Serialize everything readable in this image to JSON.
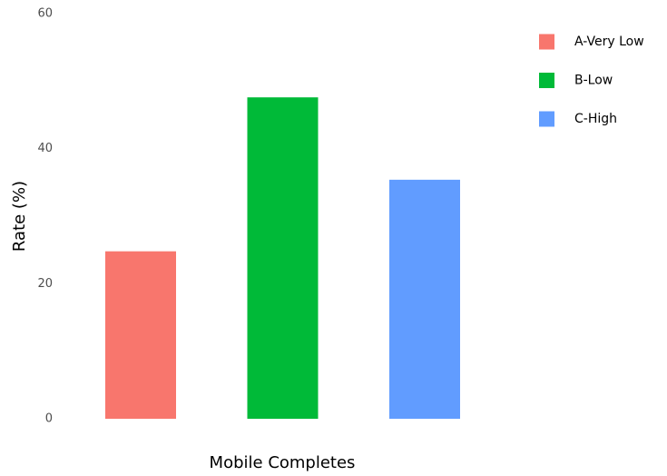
{
  "chart_data": {
    "type": "bar",
    "xlabel": "Mobile Completes",
    "ylabel": "Rate (%)",
    "series": [
      {
        "name": "A-Very Low",
        "color": "#f8766d",
        "values": [
          24.8
        ]
      },
      {
        "name": "B-Low",
        "color": "#00ba38",
        "values": [
          47.6
        ]
      },
      {
        "name": "C-High",
        "color": "#619cff",
        "values": [
          35.4
        ]
      }
    ],
    "ylim": [
      0,
      60
    ],
    "yticks": [
      0,
      20,
      40,
      60
    ],
    "grid": false,
    "legend": "right"
  }
}
